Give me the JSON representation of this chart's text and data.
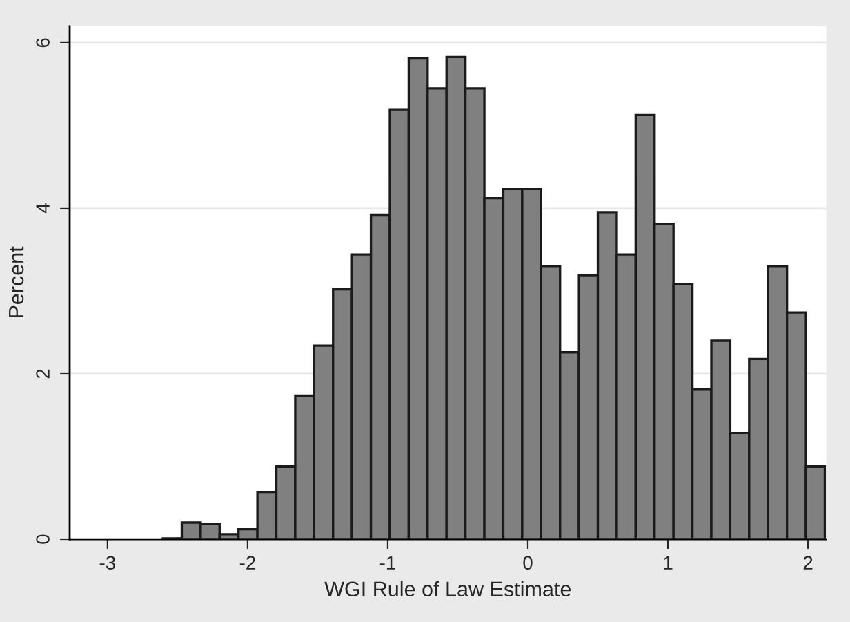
{
  "chart_data": {
    "type": "histogram",
    "xlabel": "WGI Rule of Law Estimate",
    "ylabel": "Percent",
    "bins": [
      -2.605,
      -2.47,
      -2.335,
      -2.2,
      -2.065,
      -1.93,
      -1.795,
      -1.66,
      -1.525,
      -1.39,
      -1.255,
      -1.12,
      -0.985,
      -0.85,
      -0.715,
      -0.58,
      -0.445,
      -0.31,
      -0.175,
      -0.04,
      0.095,
      0.23,
      0.365,
      0.5,
      0.635,
      0.77,
      0.905,
      1.04,
      1.175,
      1.31,
      1.445,
      1.58,
      1.715,
      1.85,
      1.985,
      2.12
    ],
    "values": [
      0.01,
      0.2,
      0.18,
      0.06,
      0.12,
      0.57,
      0.88,
      1.73,
      2.34,
      3.02,
      3.44,
      3.92,
      5.19,
      5.81,
      5.45,
      5.83,
      5.45,
      4.12,
      4.23,
      4.23,
      3.3,
      2.26,
      3.19,
      3.95,
      3.44,
      5.13,
      3.81,
      3.08,
      1.81,
      2.4,
      1.28,
      2.18,
      3.3,
      2.74,
      0.88
    ],
    "color": "#808080",
    "xlim": [
      -3.27,
      2.13
    ],
    "ylim": [
      0,
      6.2
    ],
    "xticks": [
      -3,
      -2,
      -1,
      0,
      1,
      2
    ],
    "yticks": [
      0,
      2,
      4,
      6
    ],
    "grid": "y"
  }
}
